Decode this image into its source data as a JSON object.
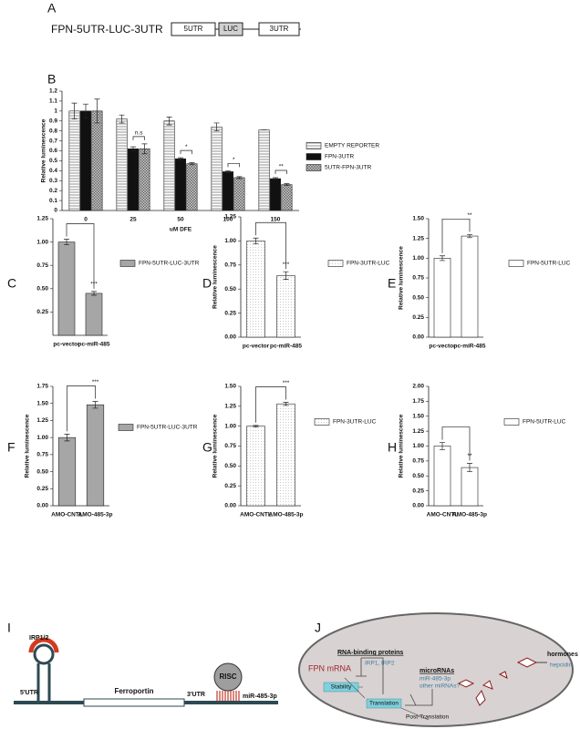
{
  "panel_labels": [
    "A",
    "B",
    "C",
    "D",
    "E",
    "F",
    "G",
    "H",
    "I",
    "J"
  ],
  "construct": {
    "name": "FPN-5UTR-LUC-3UTR",
    "parts": [
      "5UTR",
      "LUC",
      "3UTR"
    ]
  },
  "chart_data": [
    {
      "type": "bar",
      "xlabel": "uM DFE",
      "ylabel": "Relative luminescence",
      "categories": [
        "0",
        "25",
        "50",
        "100",
        "150"
      ],
      "series": [
        {
          "name": "EMPTY REPORTER",
          "color": "#ffffff",
          "pattern": "hstripes",
          "values": [
            1.0,
            0.92,
            0.9,
            0.84,
            0.81
          ],
          "errors": [
            0.08,
            0.04,
            0.04,
            0.04,
            0.0
          ]
        },
        {
          "name": "FPN-3UTR",
          "color": "#111111",
          "pattern": "solid",
          "values": [
            1.0,
            0.62,
            0.52,
            0.39,
            0.32
          ],
          "errors": [
            0.07,
            0.02,
            0.01,
            0.01,
            0.01
          ]
        },
        {
          "name": "5UTR-FPN-3UTR",
          "color": "#9a9a9a",
          "pattern": "crosshatch",
          "values": [
            1.0,
            0.62,
            0.47,
            0.33,
            0.26
          ],
          "errors": [
            0.12,
            0.05,
            0.01,
            0.01,
            0.01
          ]
        }
      ],
      "significance": [
        null,
        "n.s",
        "*",
        "*",
        "**"
      ],
      "ylim": [
        0,
        1.2
      ],
      "yticks": [
        0,
        0.1,
        0.2,
        0.3,
        0.4,
        0.5,
        0.6,
        0.7,
        0.8,
        0.9,
        1,
        1.1,
        1.2
      ]
    },
    {
      "type": "bar",
      "categories": [
        "pc-vector",
        "pc-miR-485"
      ],
      "series": [
        {
          "name": "FPN-5UTR-LUC-3UTR",
          "color": "#a6a6a6",
          "pattern": "solid",
          "values": [
            1.0,
            0.45
          ],
          "errors": [
            0.03,
            0.02
          ]
        }
      ],
      "significance": "***",
      "ylim": [
        0,
        1.25
      ],
      "yticks": [
        0.25,
        {
          "value": 0.5,
          "label": "0.50"
        },
        0.75,
        {
          "value": 1,
          "label": "1.00"
        },
        1.25
      ]
    },
    {
      "type": "bar",
      "ylabel": "Relative luminescence",
      "categories": [
        "pc-vector",
        "pc-miR-485"
      ],
      "series": [
        {
          "name": "FPN-3UTR-LUC",
          "color": "#ffffff",
          "pattern": "dots",
          "values": [
            1.0,
            0.64
          ],
          "errors": [
            0.03,
            0.04
          ]
        }
      ],
      "significance": "***",
      "ylim": [
        0,
        1.25
      ],
      "yticks": [
        {
          "value": 0,
          "label": "0.00"
        },
        0.25,
        {
          "value": 0.5,
          "label": "0.50"
        },
        0.75,
        {
          "value": 1,
          "label": "1.00"
        },
        1.25
      ]
    },
    {
      "type": "bar",
      "ylabel": "Relative luminescence",
      "categories": [
        "pc-vector",
        "pc-miR-485"
      ],
      "series": [
        {
          "name": "FPN-5UTR-LUC",
          "color": "#ffffff",
          "pattern": "solid",
          "values": [
            1.0,
            1.28
          ],
          "errors": [
            0.03,
            0.02
          ]
        }
      ],
      "significance": "**",
      "ylim": [
        0,
        1.5
      ],
      "yticks": [
        {
          "value": 0,
          "label": "0.00"
        },
        0.25,
        {
          "value": 0.5,
          "label": "0.50"
        },
        0.75,
        {
          "value": 1,
          "label": "1.00"
        },
        1.25,
        {
          "value": 1.5,
          "label": "1.50"
        }
      ]
    },
    {
      "type": "bar",
      "ylabel": "Relative luminescence",
      "categories": [
        "AMO-CNTL",
        "AMO-485-3p"
      ],
      "series": [
        {
          "name": "FPN-5UTR-LUC-3UTR",
          "color": "#a6a6a6",
          "pattern": "solid",
          "values": [
            1.0,
            1.48
          ],
          "errors": [
            0.05,
            0.05
          ]
        }
      ],
      "significance": "***",
      "ylim": [
        0,
        1.75
      ],
      "yticks": [
        {
          "value": 0,
          "label": "0.00"
        },
        0.25,
        {
          "value": 0.5,
          "label": "0.50"
        },
        0.75,
        {
          "value": 1,
          "label": "1.00"
        },
        1.25,
        {
          "value": 1.5,
          "label": "1.50"
        },
        1.75
      ]
    },
    {
      "type": "bar",
      "ylabel": "Relative luminescence",
      "categories": [
        "AMO-CNTL",
        "AMO-485-3p"
      ],
      "series": [
        {
          "name": "FPN-3UTR-LUC",
          "color": "#ffffff",
          "pattern": "dots",
          "values": [
            1.0,
            1.28
          ],
          "errors": [
            0.01,
            0.02
          ]
        }
      ],
      "significance": "***",
      "ylim": [
        0,
        1.5
      ],
      "yticks": [
        {
          "value": 0,
          "label": "0.00"
        },
        0.25,
        {
          "value": 0.5,
          "label": "0.50"
        },
        0.75,
        {
          "value": 1,
          "label": "1.00"
        },
        1.25,
        {
          "value": 1.5,
          "label": "1.50"
        }
      ]
    },
    {
      "type": "bar",
      "ylabel": "Relative luminescence",
      "categories": [
        "AMO-CNTL",
        "AMO-485-3p"
      ],
      "series": [
        {
          "name": "FPN-5UTR-LUC",
          "color": "#ffffff",
          "pattern": "solid",
          "values": [
            1.0,
            0.64
          ],
          "errors": [
            0.06,
            0.07
          ]
        }
      ],
      "significance": "**",
      "ylim": [
        0,
        2
      ],
      "yticks": [
        {
          "value": 0,
          "label": "0.00"
        },
        0.25,
        {
          "value": 0.5,
          "label": "0.50"
        },
        0.75,
        {
          "value": 1,
          "label": "1.00"
        },
        1.25,
        {
          "value": 1.5,
          "label": "1.50"
        },
        1.75,
        {
          "value": 2,
          "label": "2.00"
        }
      ]
    }
  ],
  "diagram_i": {
    "irp": "IRP1/2",
    "utr5": "5'UTR",
    "gene": "Ferroportin",
    "utr3": "3'UTR",
    "risc": "RISC",
    "mirna": "miR-485-3p"
  },
  "diagram_j": {
    "rbp": "RNA-binding proteins",
    "irps": "IRP1, IRP2",
    "micro": "microRNAs",
    "mir1": "miR-485-3p",
    "mir2": "other miRNAs?",
    "mrna": "FPN mRNA",
    "stability": "Stability",
    "translation": "Translation",
    "post": "Post-Translation",
    "hormones": "hormones",
    "hepcidin": "hepcidin"
  }
}
